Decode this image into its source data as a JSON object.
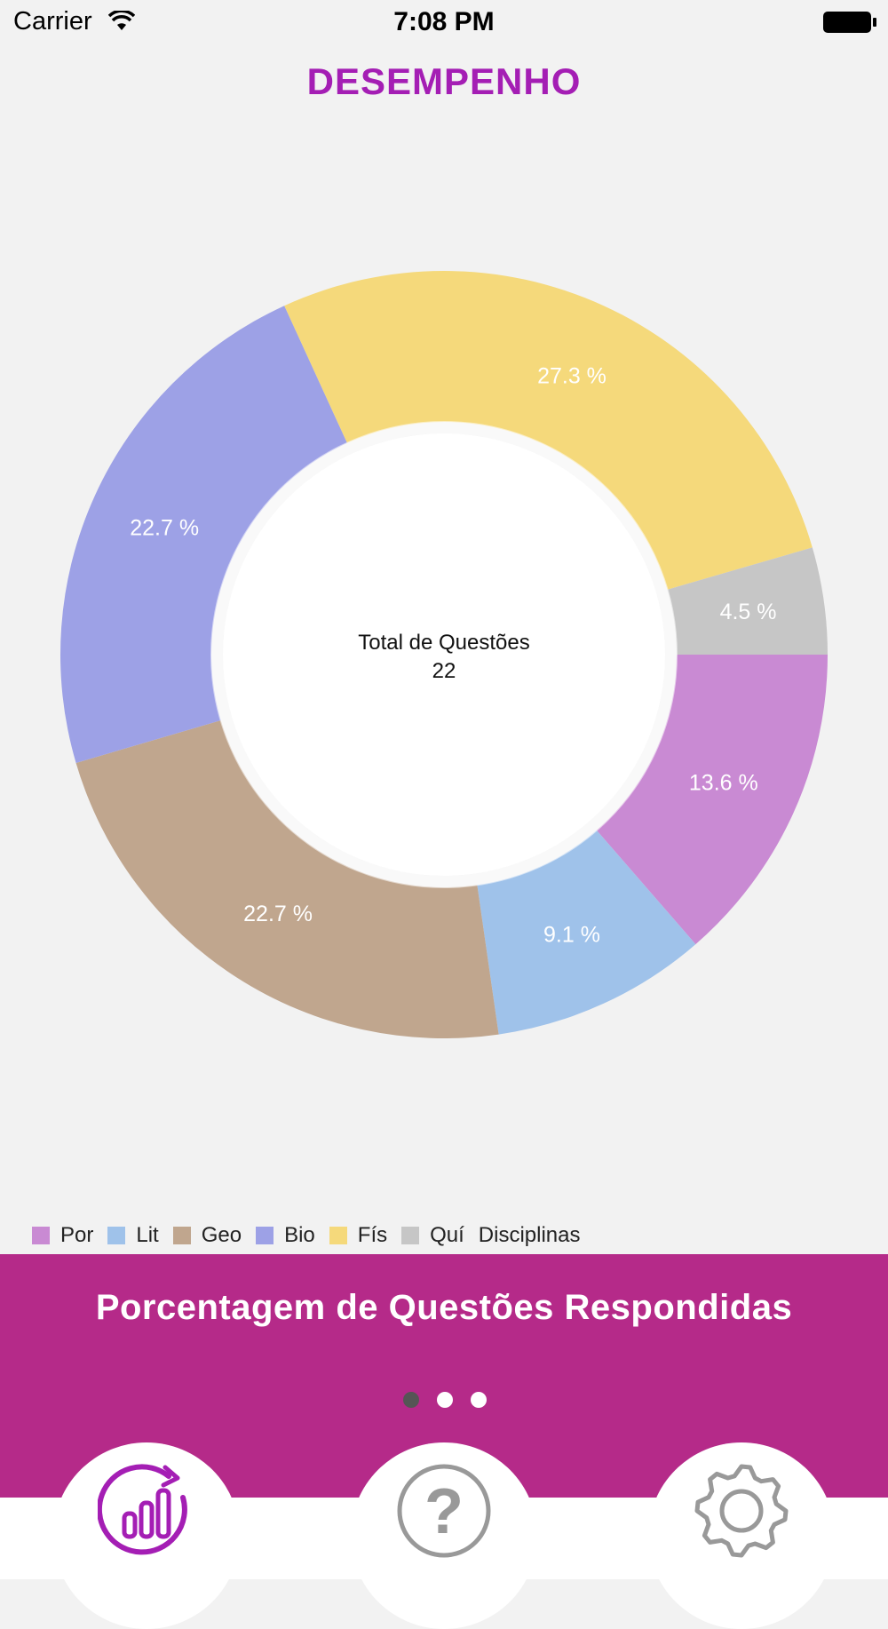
{
  "status_bar": {
    "carrier": "Carrier",
    "time": "7:08 PM"
  },
  "title": "DESEMPENHO",
  "chart_data": {
    "type": "pie",
    "variant": "donut",
    "categories": [
      "Por",
      "Lit",
      "Geo",
      "Bio",
      "Fís",
      "Quí"
    ],
    "values": [
      13.6,
      9.1,
      22.7,
      22.7,
      27.3,
      4.5
    ],
    "labels": [
      "13.6 %",
      "9.1 %",
      "22.7 %",
      "22.7 %",
      "27.3 %",
      "4.5 %"
    ],
    "colors": [
      "#c98ad3",
      "#9fc2ea",
      "#c0a68e",
      "#9da1e6",
      "#f5d97b",
      "#c6c6c6"
    ],
    "center_text": {
      "line1": "Total de Questões",
      "line2": "22"
    },
    "legend_title": "Disciplinas",
    "legend_position": "bottom-left"
  },
  "banner": {
    "title": "Porcentagem de Questões Respondidas",
    "pages": 3,
    "current_page": 0,
    "color": "#b52a89"
  },
  "tabbar": {
    "tabs": [
      {
        "icon": "performance-chart-icon",
        "color": "#a41eb4",
        "selected": true
      },
      {
        "icon": "question-mark-icon",
        "color": "#999999",
        "selected": false
      },
      {
        "icon": "gear-icon",
        "color": "#999999",
        "selected": false
      }
    ]
  }
}
